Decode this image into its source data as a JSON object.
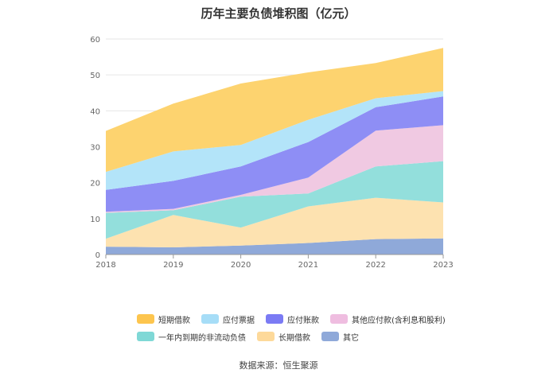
{
  "title": "历年主要负债堆积图（亿元）",
  "source": "数据来源：恒生聚源",
  "chart_data": {
    "type": "area",
    "stacked": true,
    "categories": [
      "2018",
      "2019",
      "2020",
      "2021",
      "2022",
      "2023"
    ],
    "ylim": [
      0,
      60
    ],
    "yticks": [
      0,
      10,
      20,
      30,
      40,
      50,
      60
    ],
    "grid": true,
    "legend_position": "bottom",
    "series": [
      {
        "name": "其它",
        "color": "#8fa9d9",
        "values": [
          2.2,
          2.0,
          2.5,
          3.2,
          4.3,
          4.5
        ]
      },
      {
        "name": "长期借款",
        "color": "#fde2b0",
        "values": [
          2.2,
          9.0,
          5.0,
          10.2,
          11.5,
          10.0
        ]
      },
      {
        "name": "一年内到期的非流动负债",
        "color": "#93dfdc",
        "values": [
          7.2,
          1.3,
          8.6,
          3.6,
          8.7,
          11.5
        ]
      },
      {
        "name": "其他应付款(含利息和股利)",
        "color": "#f0c9e2",
        "values": [
          0.3,
          0.4,
          0.5,
          4.4,
          10.0,
          10.0
        ]
      },
      {
        "name": "应付账款",
        "color": "#8e8ef5",
        "values": [
          6.1,
          7.8,
          7.9,
          9.9,
          6.5,
          8.0
        ]
      },
      {
        "name": "应付票据",
        "color": "#b3e4f9",
        "values": [
          5.0,
          8.2,
          6.0,
          6.2,
          2.5,
          1.5
        ]
      },
      {
        "name": "短期借款",
        "color": "#fdd36f",
        "values": [
          11.4,
          13.3,
          17.1,
          13.2,
          9.8,
          12.0
        ]
      }
    ]
  },
  "legend_rows": [
    [
      {
        "label": "短期借款",
        "color": "#fdc54e"
      },
      {
        "label": "应付票据",
        "color": "#a6ddf7"
      },
      {
        "label": "应付账款",
        "color": "#7b7bf4"
      },
      {
        "label": "其他应付款(含利息和股利)",
        "color": "#efbde0"
      }
    ],
    [
      {
        "label": "一年内到期的非流动负债",
        "color": "#7fd8d6"
      },
      {
        "label": "长期借款",
        "color": "#fdd99a"
      },
      {
        "label": "其它",
        "color": "#8fa9d9"
      }
    ]
  ]
}
